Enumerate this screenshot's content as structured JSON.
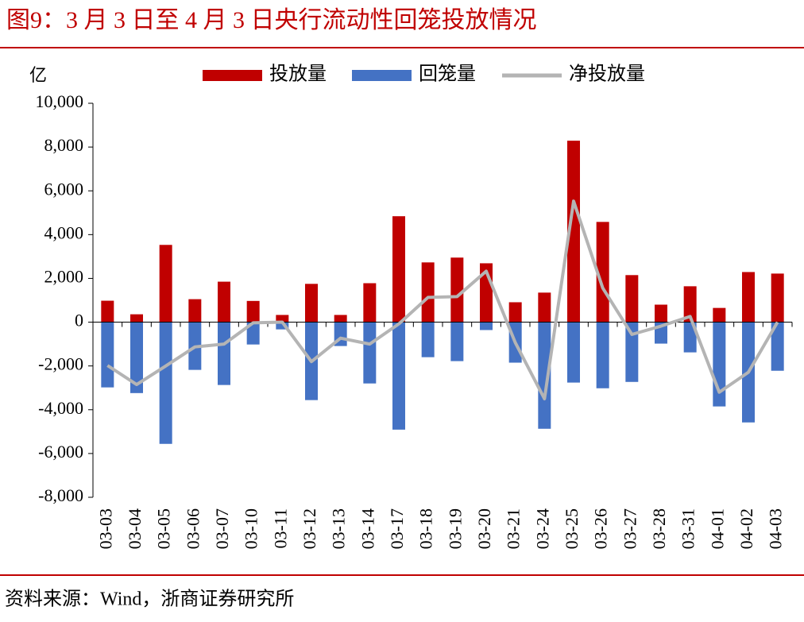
{
  "title": "图9：3 月 3 日至 4 月 3 日央行流动性回笼投放情况",
  "source": "资料来源：Wind，浙商证券研究所",
  "chart_data": {
    "type": "bar",
    "y_label": "亿",
    "categories": [
      "03-03",
      "03-04",
      "03-05",
      "03-06",
      "03-07",
      "03-10",
      "03-11",
      "03-12",
      "03-13",
      "03-14",
      "03-17",
      "03-18",
      "03-19",
      "03-20",
      "03-21",
      "03-24",
      "03-25",
      "03-26",
      "03-27",
      "03-28",
      "03-31",
      "04-01",
      "04-02",
      "04-03"
    ],
    "series": [
      {
        "name": "投放量",
        "type": "bar",
        "color": "#c00000",
        "values": [
          980,
          360,
          3530,
          1050,
          1850,
          970,
          330,
          1750,
          330,
          1780,
          4840,
          2730,
          2950,
          2690,
          910,
          1350,
          8290,
          4580,
          2150,
          800,
          1640,
          650,
          2290,
          2220
        ]
      },
      {
        "name": "回笼量",
        "type": "bar",
        "color": "#4472c4",
        "values": [
          -2980,
          -3240,
          -5560,
          -2180,
          -2870,
          -1020,
          -330,
          -3560,
          -1090,
          -2800,
          -4910,
          -1600,
          -1780,
          -360,
          -1850,
          -4870,
          -2760,
          -3020,
          -2730,
          -980,
          -1380,
          -3850,
          -4580,
          -2220
        ]
      },
      {
        "name": "净投放量",
        "type": "line",
        "color": "#b4b4b4",
        "values": [
          -1980,
          -2850,
          -2000,
          -1130,
          -1000,
          -30,
          0,
          -1800,
          -730,
          -1000,
          -80,
          1130,
          1170,
          2330,
          -940,
          -3500,
          5530,
          1560,
          -560,
          -180,
          260,
          -3200,
          -2290,
          0
        ]
      }
    ],
    "ylim": [
      -8000,
      10000
    ],
    "yticks": [
      {
        "value": -8000,
        "label": "-8,000"
      },
      {
        "value": -6000,
        "label": "-6,000"
      },
      {
        "value": -4000,
        "label": "-4,000"
      },
      {
        "value": -2000,
        "label": "-2,000"
      },
      0,
      {
        "value": 2000,
        "label": "2,000"
      },
      {
        "value": 4000,
        "label": "4,000"
      },
      {
        "value": 6000,
        "label": "6,000"
      },
      {
        "value": 8000,
        "label": "8,000"
      },
      {
        "value": 10000,
        "label": "10,000"
      }
    ],
    "grid": false,
    "legend": "top"
  }
}
